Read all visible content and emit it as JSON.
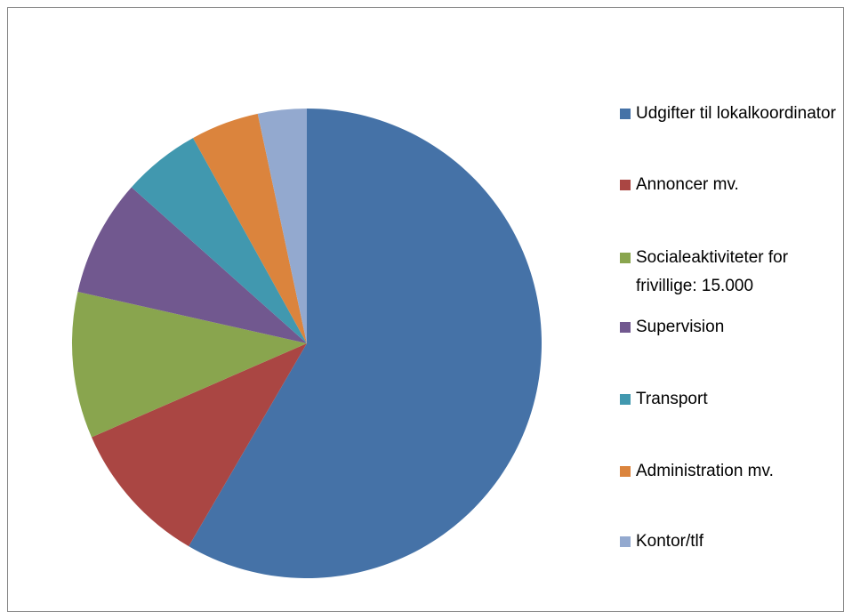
{
  "chart_data": {
    "type": "pie",
    "categories": [
      "Udgifter til lokalkoordinator",
      "Annoncer mv.",
      "Socialeaktiviteter for frivillige: 15.000",
      "Supervision",
      "Transport",
      "Administration mv.",
      "Kontor/tlf"
    ],
    "values": [
      87000,
      15000,
      15000,
      12000,
      8000,
      7000,
      5000
    ],
    "colors": [
      "#4572a7",
      "#aa4643",
      "#89a54e",
      "#71588f",
      "#4198af",
      "#db843d",
      "#93a9cf"
    ],
    "legend": "right"
  }
}
